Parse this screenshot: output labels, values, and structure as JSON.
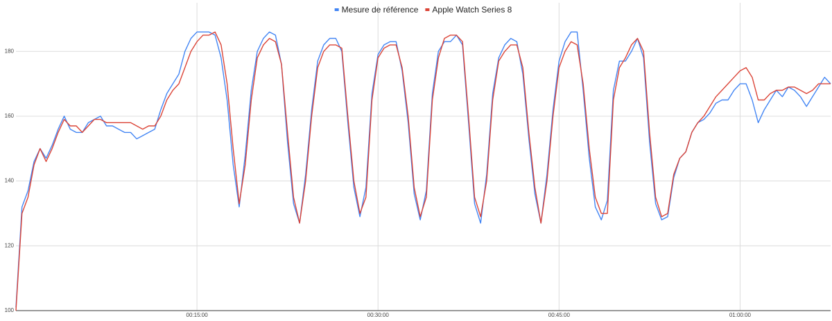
{
  "chart_data": {
    "type": "line",
    "x": [
      0,
      0.5,
      1,
      1.5,
      2,
      2.5,
      3,
      3.5,
      4,
      4.5,
      5,
      5.5,
      6,
      6.5,
      7,
      7.5,
      8,
      8.5,
      9,
      9.5,
      10,
      10.5,
      11,
      11.5,
      12,
      12.5,
      13,
      13.5,
      14,
      14.5,
      15,
      15.5,
      16,
      16.5,
      17,
      17.5,
      18,
      18.5,
      19,
      19.5,
      20,
      20.5,
      21,
      21.5,
      22,
      22.5,
      23,
      23.5,
      24,
      24.5,
      25,
      25.5,
      26,
      26.5,
      27,
      27.5,
      28,
      28.5,
      29,
      29.5,
      30,
      30.5,
      31,
      31.5,
      32,
      32.5,
      33,
      33.5,
      34,
      34.5,
      35,
      35.5,
      36,
      36.5,
      37,
      37.5,
      38,
      38.5,
      39,
      39.5,
      40,
      40.5,
      41,
      41.5,
      42,
      42.5,
      43,
      43.5,
      44,
      44.5,
      45,
      45.5,
      46,
      46.5,
      47,
      47.5,
      48,
      48.5,
      49,
      49.5,
      50,
      50.5,
      51,
      51.5,
      52,
      52.5,
      53,
      53.5,
      54,
      54.5,
      55,
      55.5,
      56,
      56.5,
      57,
      57.5,
      58,
      58.5,
      59,
      59.5,
      60,
      60.5,
      61,
      61.5,
      62,
      62.5,
      63,
      63.5,
      64,
      64.5,
      65,
      65.5,
      66,
      66.5,
      67,
      67.5
    ],
    "series": [
      {
        "name": "Mesure de référence",
        "color": "#4285f4",
        "values": [
          101,
          132,
          137,
          146,
          150,
          147,
          151,
          156,
          160,
          156,
          155,
          155,
          158,
          159,
          160,
          157,
          157,
          156,
          155,
          155,
          153,
          154,
          155,
          156,
          162,
          167,
          170,
          173,
          180,
          184,
          186,
          186,
          186,
          185,
          178,
          165,
          145,
          132,
          148,
          168,
          180,
          184,
          186,
          185,
          176,
          152,
          133,
          127,
          142,
          162,
          177,
          182,
          184,
          184,
          180,
          158,
          138,
          129,
          138,
          167,
          179,
          182,
          183,
          183,
          174,
          158,
          136,
          128,
          137,
          167,
          180,
          183,
          183,
          185,
          182,
          158,
          133,
          127,
          142,
          167,
          178,
          182,
          184,
          183,
          173,
          153,
          136,
          127,
          142,
          162,
          177,
          183,
          186,
          186,
          168,
          147,
          132,
          128,
          134,
          168,
          177,
          177,
          180,
          184,
          178,
          152,
          133,
          128,
          129,
          141,
          147,
          149,
          155,
          158,
          159,
          161,
          164,
          165,
          165,
          168,
          170,
          170,
          165,
          158,
          162,
          165,
          168,
          166,
          169,
          168,
          166,
          163,
          166,
          169,
          172,
          170
        ]
      },
      {
        "name": "Apple Watch Series 8",
        "color": "#db4437",
        "values": [
          100,
          130,
          135,
          145,
          150,
          146,
          150,
          155,
          159,
          157,
          157,
          155,
          157,
          159,
          159,
          158,
          158,
          158,
          158,
          158,
          157,
          156,
          157,
          157,
          160,
          165,
          168,
          170,
          175,
          180,
          183,
          185,
          185,
          186,
          182,
          170,
          150,
          133,
          145,
          165,
          178,
          182,
          184,
          183,
          176,
          155,
          135,
          127,
          140,
          160,
          175,
          180,
          182,
          182,
          181,
          160,
          140,
          130,
          135,
          165,
          178,
          181,
          182,
          182,
          175,
          160,
          138,
          129,
          135,
          165,
          178,
          184,
          185,
          185,
          183,
          160,
          135,
          129,
          140,
          165,
          177,
          180,
          182,
          182,
          175,
          155,
          138,
          127,
          140,
          160,
          175,
          180,
          183,
          182,
          170,
          150,
          135,
          130,
          130,
          165,
          175,
          178,
          182,
          184,
          180,
          155,
          135,
          129,
          130,
          142,
          147,
          149,
          155,
          158,
          160,
          163,
          166,
          168,
          170,
          172,
          174,
          175,
          172,
          165,
          165,
          167,
          168,
          168,
          169,
          169,
          168,
          167,
          168,
          170,
          170,
          170
        ]
      }
    ],
    "xlim": [
      0,
      67.5
    ],
    "xticks": [
      {
        "value": 15,
        "label": "00:15:00"
      },
      {
        "value": 30,
        "label": "00:30:00"
      },
      {
        "value": 45,
        "label": "00:45:00"
      },
      {
        "value": 60,
        "label": "01:00:00"
      }
    ],
    "ylim": [
      100,
      195
    ],
    "yticks": [
      100,
      120,
      140,
      160,
      180
    ],
    "grid": true,
    "legend": "top"
  }
}
